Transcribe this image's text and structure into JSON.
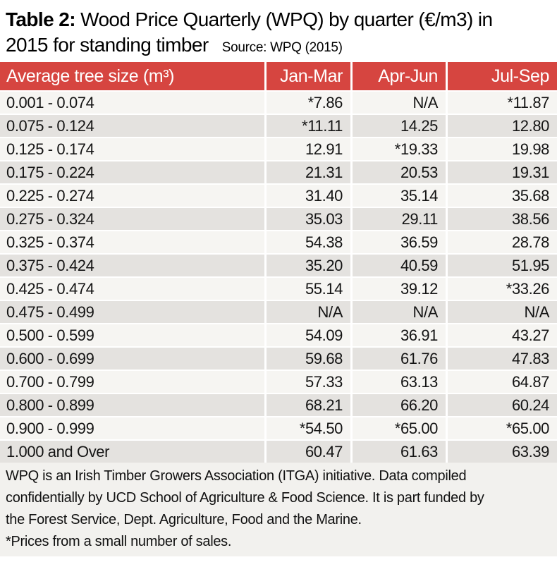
{
  "title": {
    "label": "Table 2:",
    "line1": "Wood Price Quarterly (WPQ) by quarter (€/m3) in",
    "line2": "2015 for standing timber",
    "source": "Source: WPQ (2015)"
  },
  "chart_data": {
    "type": "table",
    "title": "Table 2: Wood Price Quarterly (WPQ) by quarter (€/m3) in 2015 for standing timber",
    "source": "WPQ (2015)",
    "unit": "€/m3",
    "columns": [
      "Average tree size (m³)",
      "Jan-Mar",
      "Apr-Jun",
      "Jul-Sep"
    ],
    "rows": [
      [
        "0.001 - 0.074",
        "*7.86",
        "N/A",
        "*11.87"
      ],
      [
        "0.075 - 0.124",
        "*11.11",
        "14.25",
        "12.80"
      ],
      [
        "0.125 - 0.174",
        "12.91",
        "*19.33",
        "19.98"
      ],
      [
        "0.175 - 0.224",
        "21.31",
        "20.53",
        "19.31"
      ],
      [
        "0.225 - 0.274",
        "31.40",
        "35.14",
        "35.68"
      ],
      [
        "0.275 - 0.324",
        "35.03",
        "29.11",
        "38.56"
      ],
      [
        "0.325 - 0.374",
        "54.38",
        "36.59",
        "28.78"
      ],
      [
        "0.375 - 0.424",
        "35.20",
        "40.59",
        "51.95"
      ],
      [
        "0.425 - 0.474",
        "55.14",
        "39.12",
        "*33.26"
      ],
      [
        "0.475 - 0.499",
        "N/A",
        "N/A",
        "N/A"
      ],
      [
        "0.500 - 0.599",
        "54.09",
        "36.91",
        "43.27"
      ],
      [
        "0.600 - 0.699",
        "59.68",
        "61.76",
        "47.83"
      ],
      [
        "0.700 - 0.799",
        "57.33",
        "63.13",
        "64.87"
      ],
      [
        "0.800 - 0.899",
        "68.21",
        "66.20",
        "60.24"
      ],
      [
        "0.900 - 0.999",
        "*54.50",
        "*65.00",
        "*65.00"
      ],
      [
        "1.000 and Over",
        "60.47",
        "61.63",
        "63.39"
      ]
    ]
  },
  "footer": {
    "note_lines": [
      "WPQ is an Irish Timber Growers Association (ITGA) initiative. Data compiled",
      "confidentially by UCD School of Agriculture & Food Science. It is part funded by",
      "the Forest Service, Dept. Agriculture, Food and the Marine."
    ],
    "asterisk_note": "*Prices from a small number of sales."
  },
  "colors": {
    "header_red": "#d64540",
    "header_text": "#ffffff",
    "row_light": "#f6f5f2",
    "row_shade": "#e4e2df",
    "footer_bg": "#f2f1ee"
  }
}
